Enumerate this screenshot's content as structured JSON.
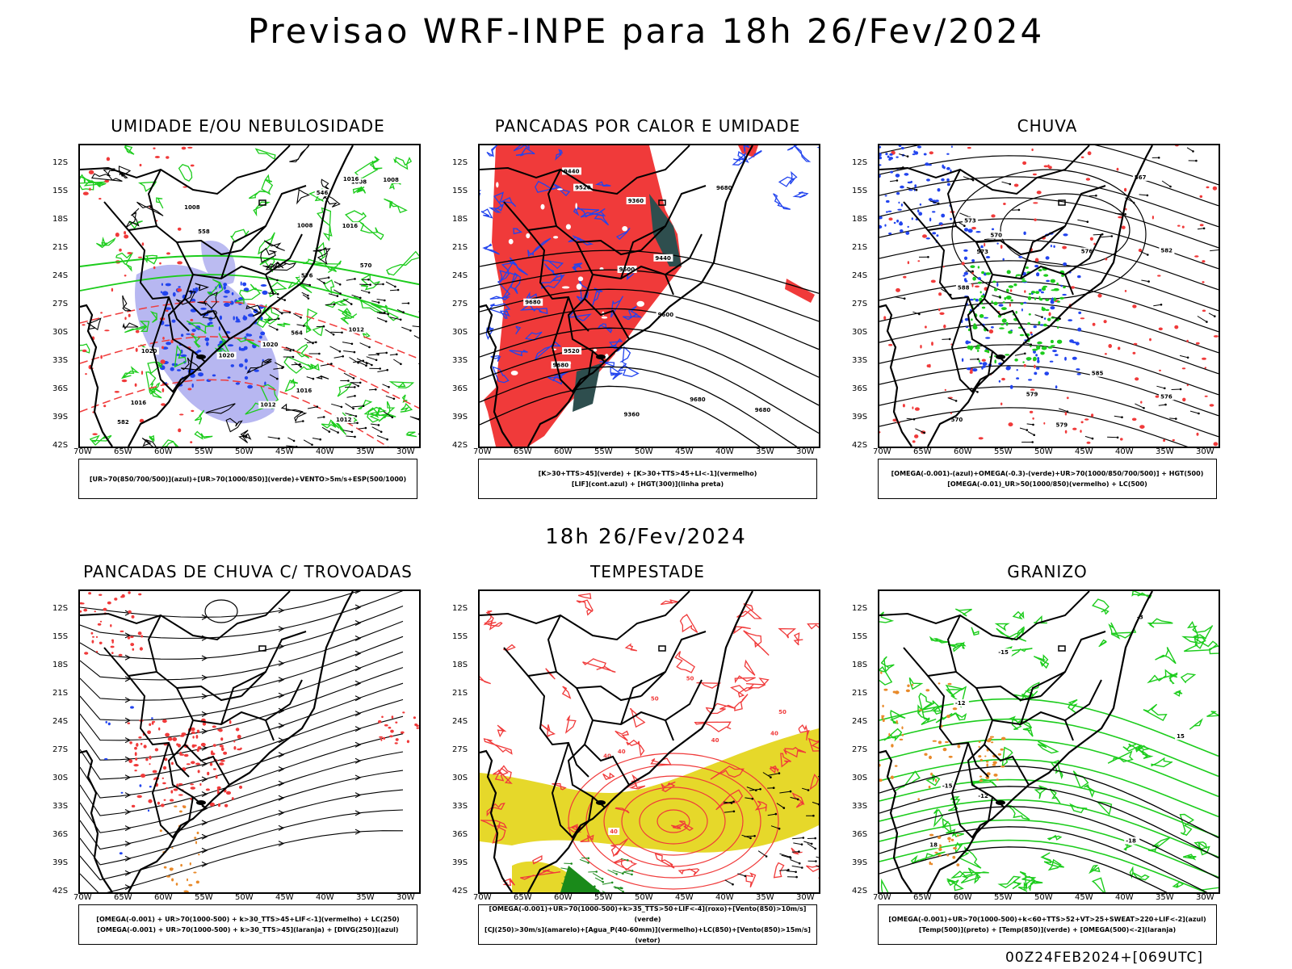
{
  "title": "Previsao WRF-INPE  para 18h 26/Fev/2024",
  "subtitle": "18h 26/Fev/2024",
  "footer": "00Z24FEB2024+[069UTC]",
  "lat_labels": [
    "12S",
    "15S",
    "18S",
    "21S",
    "24S",
    "27S",
    "30S",
    "33S",
    "36S",
    "39S",
    "42S"
  ],
  "lon_labels": [
    "70W",
    "65W",
    "60W",
    "55W",
    "50W",
    "45W",
    "40W",
    "35W",
    "30W"
  ],
  "colors": {
    "red": "#f03a3a",
    "green": "#1ccc1c",
    "blue": "#2244ee",
    "lavender": "#aaaaee",
    "dark_teal": "#2e4e4e",
    "yellow": "#e6d82a",
    "orange": "#e88a2a"
  },
  "panels": [
    {
      "id": "umidade",
      "title": "UMIDADE E/OU NEBULOSIDADE",
      "legend": [
        "[UR>70(850/700/500)](azul)+[UR>70(1000/850)](verde)+VENTO>5m/s+ESP(500/1000)"
      ],
      "labels": [
        "1008",
        "1008",
        "1008",
        "1012",
        "1016",
        "1012",
        "1016",
        "1012",
        "1016",
        "1020",
        "1020",
        "1008",
        "1016",
        "1020",
        "570",
        "582",
        "576",
        "564",
        "558",
        "546"
      ]
    },
    {
      "id": "pancadas-calor",
      "title": "PANCADAS POR CALOR E UMIDADE",
      "legend": [
        "[K>30+TTS>45](verde) + [K>30+TTS>45+LI<-1](vermelho)",
        "[LIF](cont.azul) + [HGT(300)](linha preta)"
      ],
      "labels": [
        "9680",
        "9680",
        "9600",
        "9680",
        "9520",
        "9440",
        "9360",
        "9600",
        "9520",
        "9440",
        "9360",
        "9680",
        "9680"
      ]
    },
    {
      "id": "chuva",
      "title": "CHUVA",
      "legend": [
        "[OMEGA(-0.001)-(azul)+OMEGA(-0.3)-(verde)+UR>70(1000/850/700/500)] + HGT(500)",
        "[OMEGA(-0.01)_UR>50(1000/850)(vermelho) + LC(500)"
      ],
      "labels": [
        "585",
        "588",
        "582",
        "579",
        "576",
        "573",
        "570",
        "567",
        "579",
        "576",
        "573",
        "570"
      ]
    },
    {
      "id": "pancadas-trovoadas",
      "title": "PANCADAS DE CHUVA C/ TROVOADAS",
      "legend": [
        "[OMEGA(-0.001) + UR>70(1000-500) + k>30_TTS>45+LIF<-1](vermelho) + LC(250)",
        "[OMEGA(-0.001) + UR>70(1000-500) + k>30_TTS>45](laranja) + [DIVG(250)](azul)"
      ],
      "labels": []
    },
    {
      "id": "tempestade",
      "title": "TEMPESTADE",
      "legend": [
        "[OMEGA(-0.001)+UR>70(1000-500)+k>35_TTS>50+LIF<-4](roxo)+[Vento(850)>10m/s](verde)",
        "[CJ(250)>30m/s](amarelo)+[Agua_P(40-60mm)](vermelho)+LC(850)+[Vento(850)>15m/s](vetor)"
      ],
      "labels": [
        "40",
        "50",
        "40",
        "50",
        "40",
        "40",
        "50",
        "40"
      ]
    },
    {
      "id": "granizo",
      "title": "GRANIZO",
      "legend": [
        "[OMEGA(-0.001)+UR>70(1000-500)+k<60+TTS>52+VT>25+SWEAT>220+LIF<-2](azul)",
        "[Temp(500)](preto) + [Temp(850)](verde) + [OMEGA(500)<-2](laranja)"
      ],
      "labels": [
        "-3",
        "-12",
        "-15",
        "-18",
        "-12",
        "-15",
        "15",
        "18"
      ]
    }
  ]
}
